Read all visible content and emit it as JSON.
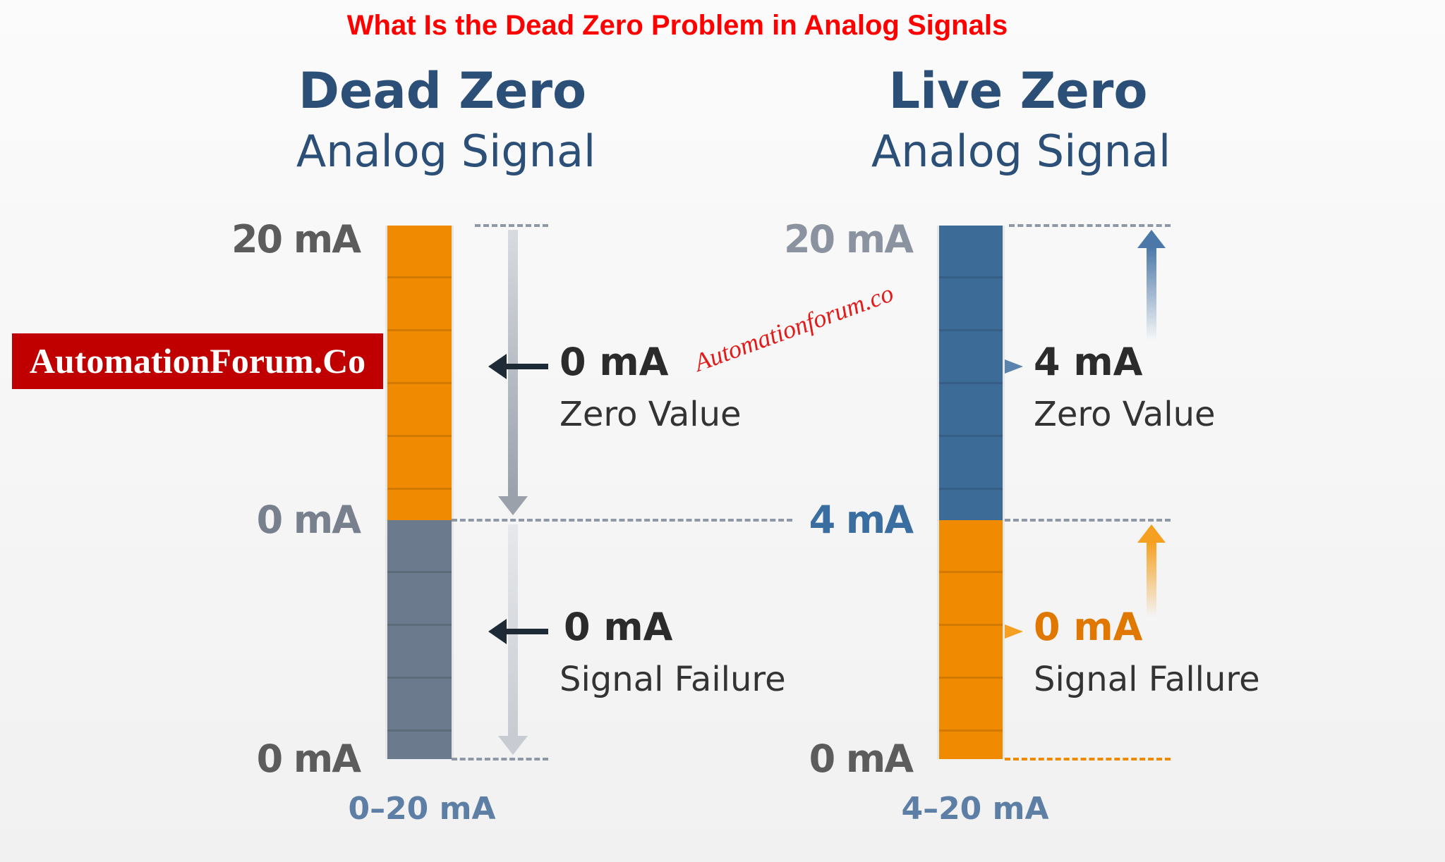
{
  "title": "What Is the Dead Zero Problem in Analog Signals",
  "dead_zero": {
    "heading": "Dead Zero",
    "subheading": "Analog Signal",
    "axis_labels": {
      "top": "20 mA",
      "middle": "0 mA",
      "bottom": "0 mA"
    },
    "zero_value": {
      "value": "0 mA",
      "label": "Zero Value"
    },
    "failure": {
      "value": "0 mA",
      "label": "Signal Failure"
    },
    "range": "0–20 mA"
  },
  "live_zero": {
    "heading": "Live Zero",
    "subheading": "Analog Signal",
    "axis_labels": {
      "top": "20 mA",
      "middle": "4 mA",
      "bottom": "0 mA"
    },
    "zero_value": {
      "value": "4 mA",
      "label": "Zero Value"
    },
    "failure": {
      "value": "0 mA",
      "label": "Signal Fallure"
    },
    "range": "4–20 mA"
  },
  "banner": "AutomationForum.Co",
  "watermark": "Automationforum.co",
  "colors": {
    "orange": "#f08a00",
    "blue": "#3d6b98",
    "grey_bar": "#6b7a8c",
    "heading": "#2c4f77",
    "title": "#ff0000"
  }
}
